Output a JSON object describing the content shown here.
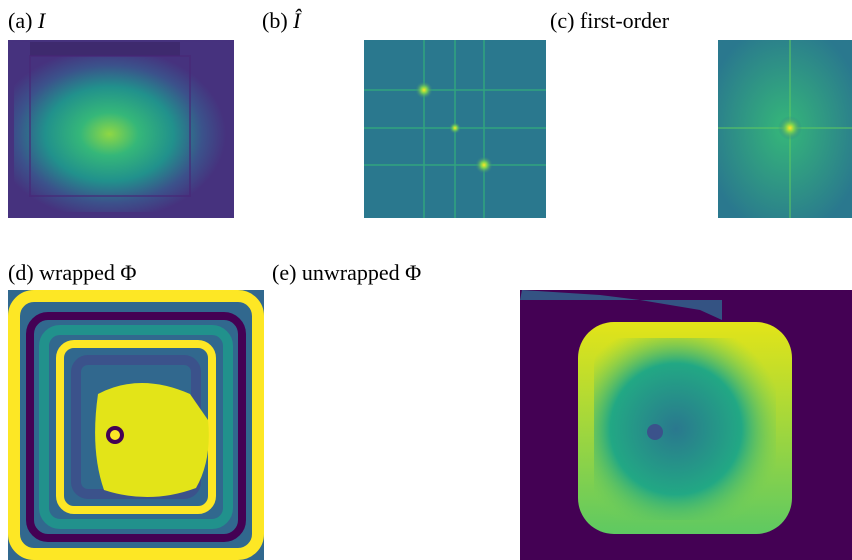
{
  "panels": [
    {
      "tag": "(a)",
      "symbol": "I"
    },
    {
      "tag": "(b)",
      "symbol": "Î"
    },
    {
      "tag": "(c)",
      "caption": "first-order"
    },
    {
      "tag": "(d)",
      "caption": "wrapped Φ"
    },
    {
      "tag": "(e)",
      "caption": "unwrapped Φ"
    }
  ]
}
